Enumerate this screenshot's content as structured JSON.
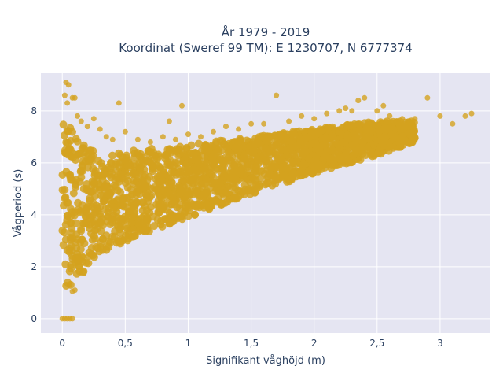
{
  "chart_data": {
    "type": "scatter",
    "title": "År 1979 - 2019",
    "subtitle": "Koordinat (Sweref 99 TM): E 1230707, N 6777374",
    "xlabel": "Signifikant våghöjd (m)",
    "ylabel": "Vågperiod (s)",
    "xlim": [
      -0.17,
      3.4
    ],
    "ylim": [
      -0.55,
      9.45
    ],
    "xticks": [
      0,
      0.5,
      1,
      1.5,
      2,
      2.5,
      3
    ],
    "xtick_labels": [
      "0",
      "0,5",
      "1",
      "1,5",
      "2",
      "2,5",
      "3"
    ],
    "yticks": [
      0,
      2,
      4,
      6,
      8
    ],
    "ytick_labels": [
      "0",
      "2",
      "4",
      "6",
      "8"
    ],
    "grid": true,
    "background": "#e5e5f2",
    "marker_color": "#d4a21f",
    "legend": "none",
    "points": [
      [
        0.0,
        0.0
      ],
      [
        0.02,
        0.0
      ],
      [
        0.04,
        0.0
      ],
      [
        0.06,
        0.0
      ],
      [
        0.08,
        0.0
      ],
      [
        0.03,
        9.1
      ],
      [
        0.05,
        9.0
      ],
      [
        0.02,
        8.6
      ],
      [
        0.04,
        8.3
      ],
      [
        0.08,
        8.5
      ],
      [
        0.1,
        8.5
      ],
      [
        0.12,
        7.8
      ],
      [
        0.15,
        7.6
      ],
      [
        0.2,
        7.4
      ],
      [
        0.25,
        7.7
      ],
      [
        0.3,
        7.3
      ],
      [
        0.35,
        7.0
      ],
      [
        0.4,
        6.9
      ],
      [
        0.45,
        8.3
      ],
      [
        0.5,
        7.2
      ],
      [
        0.6,
        6.9
      ],
      [
        0.7,
        6.8
      ],
      [
        0.8,
        7.0
      ],
      [
        0.9,
        6.9
      ],
      [
        1.0,
        7.1
      ],
      [
        1.1,
        7.0
      ],
      [
        1.2,
        7.2
      ],
      [
        1.3,
        7.4
      ],
      [
        1.4,
        7.3
      ],
      [
        1.5,
        7.5
      ],
      [
        1.6,
        7.5
      ],
      [
        1.7,
        8.6
      ],
      [
        1.8,
        7.6
      ],
      [
        1.9,
        7.8
      ],
      [
        2.0,
        7.7
      ],
      [
        2.1,
        7.9
      ],
      [
        2.2,
        8.0
      ],
      [
        2.25,
        8.1
      ],
      [
        2.3,
        8.0
      ],
      [
        2.35,
        8.4
      ],
      [
        2.4,
        8.5
      ],
      [
        2.5,
        8.0
      ],
      [
        2.55,
        8.2
      ],
      [
        2.6,
        7.8
      ],
      [
        2.7,
        7.7
      ],
      [
        2.8,
        7.7
      ],
      [
        2.9,
        8.5
      ],
      [
        3.0,
        7.8
      ],
      [
        3.1,
        7.5
      ],
      [
        3.2,
        7.8
      ],
      [
        3.25,
        7.9
      ],
      [
        0.95,
        8.2
      ],
      [
        0.85,
        7.6
      ],
      [
        0.1,
        1.1
      ],
      [
        0.06,
        1.3
      ],
      [
        0.08,
        1.05
      ]
    ],
    "density_bands": [
      {
        "x_from": 0.0,
        "x_to": 0.1,
        "y_low_from": 1.2,
        "y_low_to": 1.3,
        "y_high_from": 8.0,
        "y_high_to": 7.0
      },
      {
        "x_from": 0.1,
        "x_to": 0.3,
        "y_low_from": 1.4,
        "y_low_to": 2.5,
        "y_high_from": 7.0,
        "y_high_to": 6.3
      },
      {
        "x_from": 0.3,
        "x_to": 0.6,
        "y_low_from": 2.5,
        "y_low_to": 3.2,
        "y_high_from": 6.3,
        "y_high_to": 6.5
      },
      {
        "x_from": 0.6,
        "x_to": 1.0,
        "y_low_from": 3.2,
        "y_low_to": 3.9,
        "y_high_from": 6.5,
        "y_high_to": 6.7
      },
      {
        "x_from": 1.0,
        "x_to": 1.5,
        "y_low_from": 3.9,
        "y_low_to": 4.8,
        "y_high_from": 6.7,
        "y_high_to": 7.0
      },
      {
        "x_from": 1.5,
        "x_to": 2.0,
        "y_low_from": 4.8,
        "y_low_to": 5.6,
        "y_high_from": 7.0,
        "y_high_to": 7.3
      },
      {
        "x_from": 2.0,
        "x_to": 2.5,
        "y_low_from": 5.6,
        "y_low_to": 6.3,
        "y_high_from": 7.3,
        "y_high_to": 7.6
      },
      {
        "x_from": 2.5,
        "x_to": 2.8,
        "y_low_from": 6.3,
        "y_low_to": 6.8,
        "y_high_from": 7.6,
        "y_high_to": 7.6
      }
    ]
  }
}
